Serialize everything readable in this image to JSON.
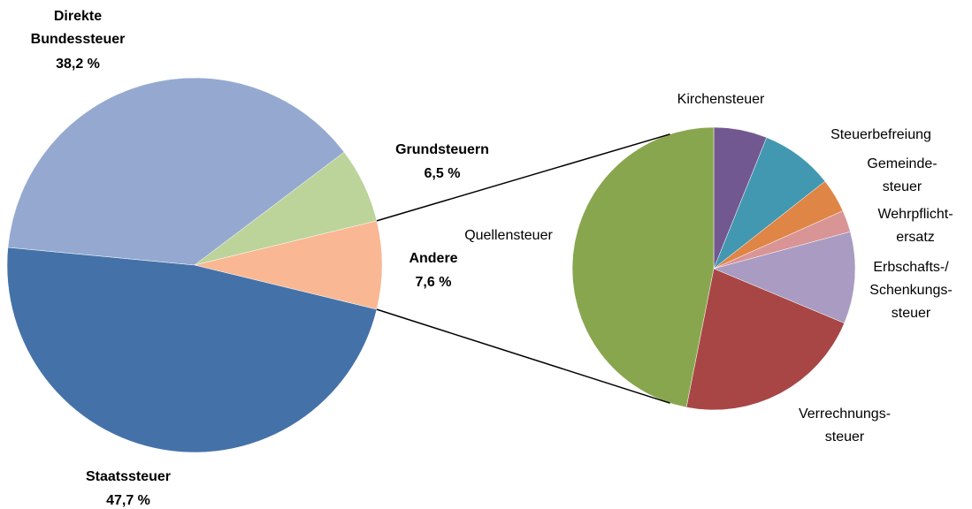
{
  "chart_data": [
    {
      "type": "pie",
      "categories": [
        [
          "Direkte",
          "Bundessteuer"
        ],
        [
          "Grundsteuern"
        ],
        [
          "Andere"
        ],
        [
          "Staatssteuer"
        ]
      ],
      "values": [
        38.2,
        6.5,
        7.6,
        47.7
      ],
      "value_labels": [
        "38,2 %",
        "6,5 %",
        "7,6 %",
        "47,7 %"
      ],
      "colors": [
        "#95a9d0",
        "#bcd39a",
        "#f9b793",
        "#4472a8"
      ]
    },
    {
      "type": "pie",
      "categories": [
        [
          "Kirchensteuer"
        ],
        [
          "Steuerbefreiung"
        ],
        [
          "Gemeinde-",
          "steuer"
        ],
        [
          "Wehrpflicht-",
          "ersatz"
        ],
        [
          "Erbschafts-/",
          "Schenkungs-",
          "steuer"
        ],
        [
          "Verrechnungs-",
          "steuer"
        ],
        [
          "Quellensteuer"
        ]
      ],
      "values": [
        6.1,
        8.3,
        3.9,
        2.5,
        10.5,
        21.8,
        46.9
      ],
      "colors": [
        "#725891",
        "#4398b1",
        "#df8545",
        "#d99495",
        "#a99bc1",
        "#a84646",
        "#88a64e"
      ]
    }
  ]
}
